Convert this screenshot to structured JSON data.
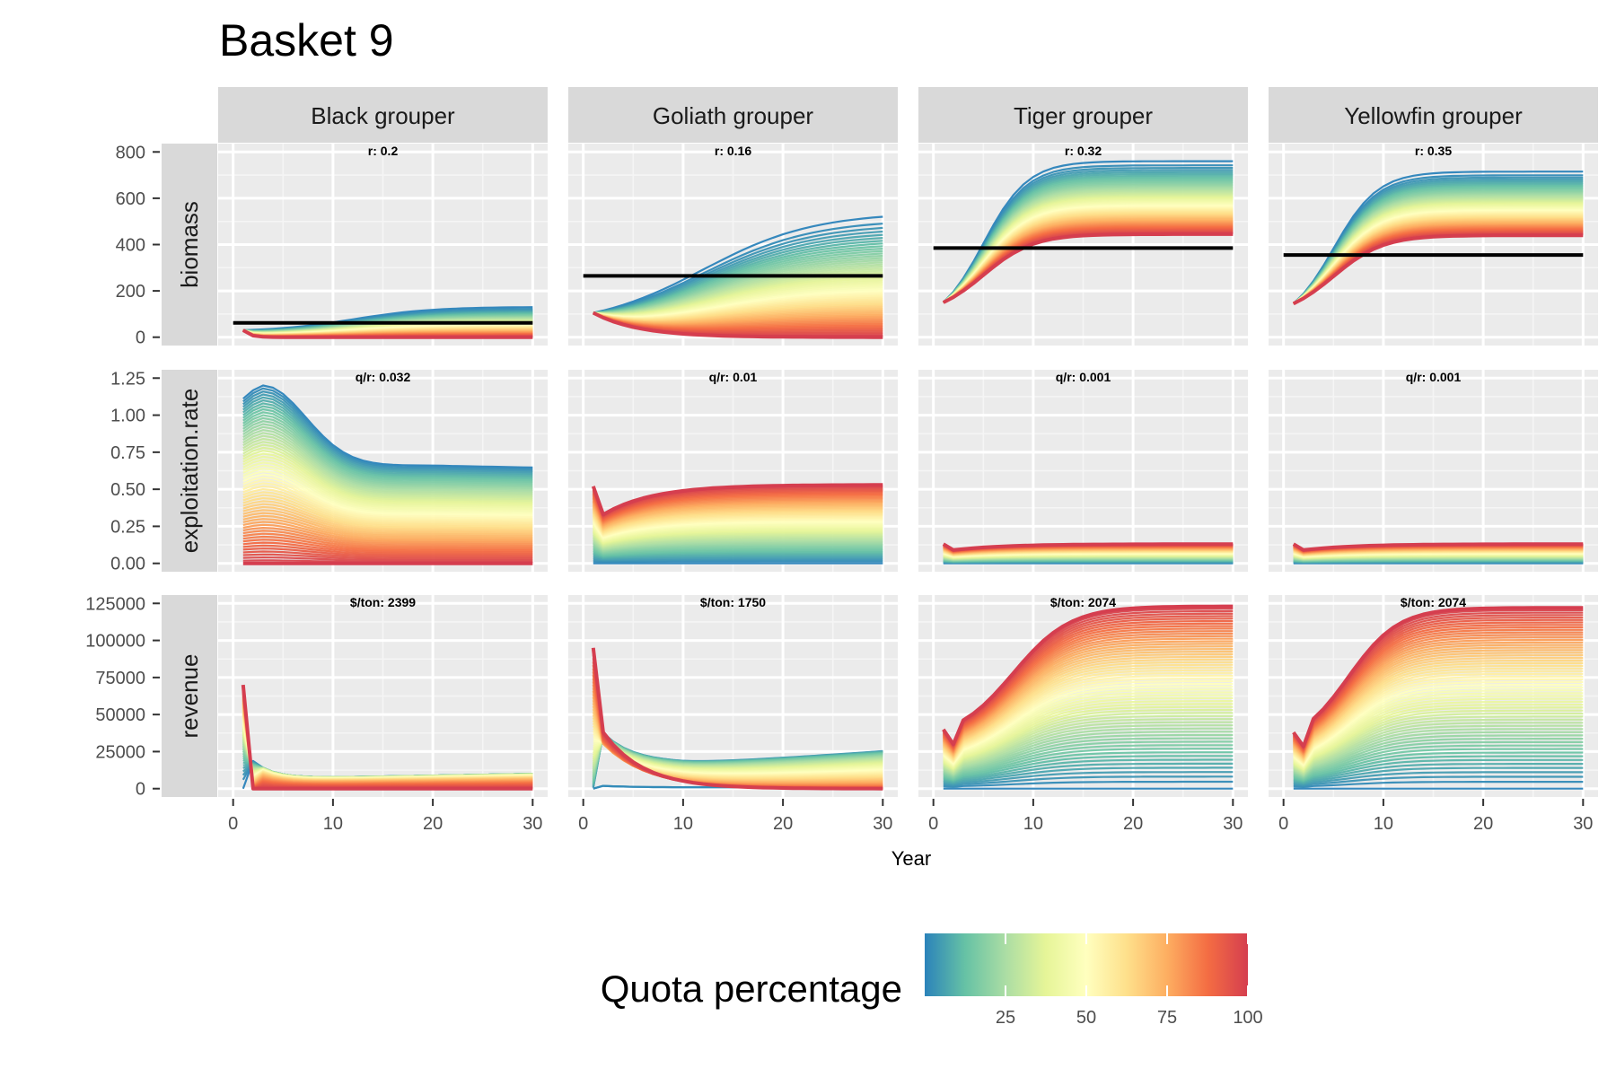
{
  "chart_data": {
    "type": "line",
    "title": "Basket 9",
    "xlabel": "Year",
    "x_range": [
      0,
      30
    ],
    "x_ticks": [
      0,
      10,
      20,
      30
    ],
    "facet_columns": [
      "Black grouper",
      "Goliath grouper",
      "Tiger grouper",
      "Yellowfin grouper"
    ],
    "facet_rows": [
      {
        "name": "biomass",
        "ylim": [
          0,
          800
        ],
        "ticks": [
          0,
          200,
          400,
          600,
          800
        ],
        "tick_labels": [
          "0",
          "200",
          "400",
          "600",
          "800"
        ]
      },
      {
        "name": "exploitation.rate",
        "ylim": [
          0,
          1.25
        ],
        "ticks": [
          0,
          0.25,
          0.5,
          0.75,
          1.0,
          1.25
        ],
        "tick_labels": [
          "0.00",
          "0.25",
          "0.50",
          "0.75",
          "1.00",
          "1.25"
        ]
      },
      {
        "name": "revenue",
        "ylim": [
          0,
          125000
        ],
        "ticks": [
          0,
          25000,
          50000,
          75000,
          100000,
          125000
        ],
        "tick_labels": [
          "0",
          "25000",
          "50000",
          "75000",
          "100000",
          "125000"
        ]
      }
    ],
    "annotations": [
      [
        "r:  0.2",
        "r:  0.16",
        "r:  0.32",
        "r:  0.35"
      ],
      [
        "q/r:  0.032",
        "q/r:  0.01",
        "q/r:  0.001",
        "q/r:  0.001"
      ],
      [
        "$/ton:  2399",
        "$/ton:  1750",
        "$/ton:  2074",
        "$/ton:  2074"
      ]
    ],
    "reference_lines": [
      62,
      265,
      385,
      355
    ],
    "series_envelopes": {
      "biomass": [
        {
          "zero_quota": {
            "start": 30,
            "end": 130,
            "mid": 12,
            "steep": 0.25
          },
          "full_quota": {
            "start": 30,
            "end": 0,
            "decay": 1.5
          }
        },
        {
          "zero_quota": {
            "start": 105,
            "end": 520,
            "mid": 12,
            "steep": 0.18
          },
          "full_quota": {
            "start": 105,
            "end": 0,
            "decay": 0.22
          }
        },
        {
          "zero_quota": {
            "start": 150,
            "end": 760,
            "mid": 5,
            "steep": 0.45
          },
          "full_quota": {
            "start": 150,
            "end": 445,
            "mid": 5,
            "steep": 0.4
          }
        },
        {
          "zero_quota": {
            "start": 145,
            "end": 715,
            "mid": 5,
            "steep": 0.45
          },
          "full_quota": {
            "start": 145,
            "end": 440,
            "mid": 5,
            "steep": 0.4
          }
        }
      ],
      "exploitation.rate": [
        {
          "peak": 1.2,
          "peak_year": 3,
          "end": 0.66
        },
        {
          "start": 0.52,
          "dip": 0.33,
          "end": 0.53
        },
        {
          "start": 0.13,
          "dip": 0.09,
          "end": 0.13
        },
        {
          "start": 0.13,
          "dip": 0.09,
          "end": 0.13
        }
      ],
      "revenue": [
        {
          "full_quota_start": 70000,
          "zero_quota_end": 10000,
          "drop_year": 2
        },
        {
          "full_quota_start": 95000,
          "zero_quota_end": 25000,
          "mid_year": 12
        },
        {
          "start": 40000,
          "end": 123000,
          "mid": 8,
          "steep": 0.35
        },
        {
          "start": 38000,
          "end": 122000,
          "mid": 6.5,
          "steep": 0.4
        }
      ]
    },
    "legend": {
      "title": "Quota percentage",
      "ticks": [
        25,
        50,
        75,
        100
      ],
      "range": [
        0,
        100
      ],
      "position": "bottom",
      "colors": [
        "#2b83ba",
        "#66c2a5",
        "#abdda4",
        "#e6f598",
        "#ffffbf",
        "#fee08b",
        "#fdae61",
        "#f46d43",
        "#d53e4f"
      ]
    },
    "reference_line_color": "#000000",
    "highlight_color": "#d53e4f"
  }
}
